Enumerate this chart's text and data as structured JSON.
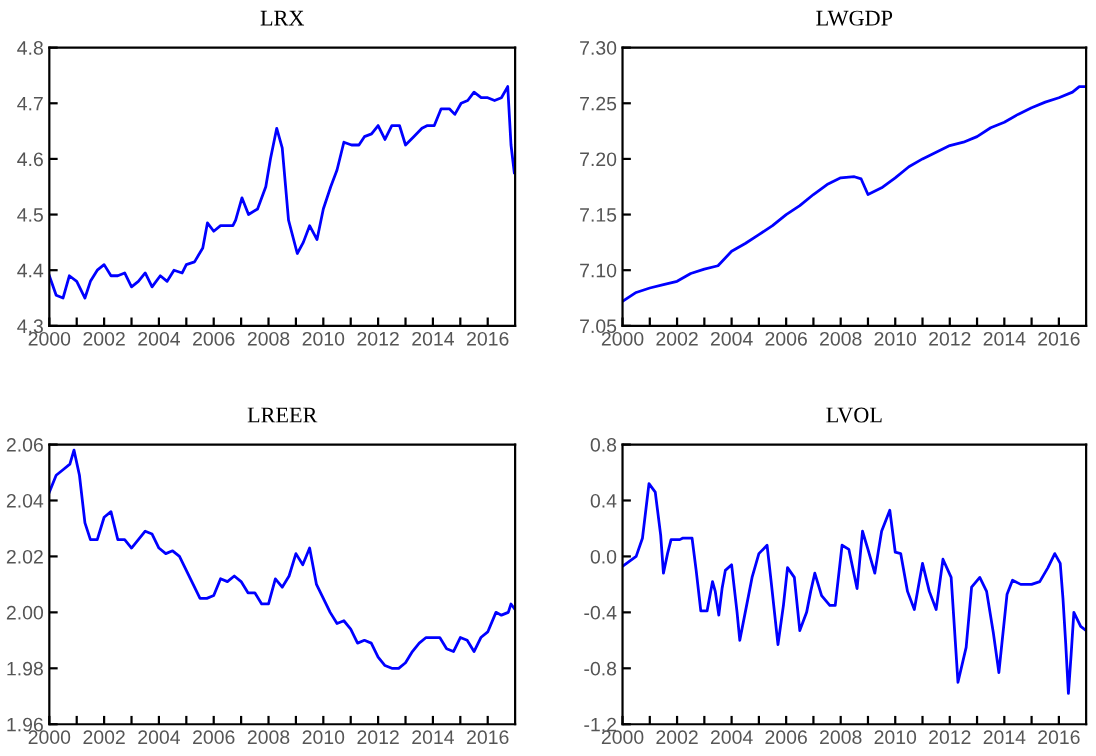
{
  "chart_data": [
    {
      "type": "line",
      "title": "LRX",
      "xlim": [
        2000,
        2017
      ],
      "ylim": [
        4.3,
        4.8
      ],
      "yticks": [
        4.3,
        4.4,
        4.5,
        4.6,
        4.7,
        4.8
      ],
      "grid": false,
      "legend": false,
      "xticks": [
        2000,
        {
          "value": 2001,
          "label": null
        },
        2002,
        {
          "value": 2003,
          "label": null
        },
        2004,
        {
          "value": 2005,
          "label": null
        },
        2006,
        {
          "value": 2007,
          "label": null
        },
        2008,
        {
          "value": 2009,
          "label": null
        },
        2010,
        {
          "value": 2011,
          "label": null
        },
        2012,
        {
          "value": 2013,
          "label": null
        },
        2014,
        {
          "value": 2015,
          "label": null
        },
        2016
      ],
      "series": [
        {
          "color": "#0000ff",
          "x": [
            2000.0,
            2000.25,
            2000.5,
            2000.73,
            2001.0,
            2001.3,
            2001.5,
            2001.75,
            2002.0,
            2002.25,
            2002.5,
            2002.75,
            2003.0,
            2003.25,
            2003.5,
            2003.75,
            2004.05,
            2004.3,
            2004.55,
            2004.85,
            2005.0,
            2005.3,
            2005.6,
            2005.77,
            2006.0,
            2006.25,
            2006.7,
            2006.8,
            2007.03,
            2007.27,
            2007.6,
            2007.9,
            2008.07,
            2008.3,
            2008.5,
            2008.73,
            2009.05,
            2009.27,
            2009.5,
            2009.77,
            2010.0,
            2010.27,
            2010.5,
            2010.75,
            2011.03,
            2011.3,
            2011.5,
            2011.76,
            2012.0,
            2012.25,
            2012.5,
            2012.78,
            2013.0,
            2013.3,
            2013.6,
            2013.8,
            2014.05,
            2014.3,
            2014.6,
            2014.8,
            2015.03,
            2015.27,
            2015.5,
            2015.76,
            2016.0,
            2016.25,
            2016.5,
            2016.73,
            2016.85,
            2016.97
          ],
          "values": [
            4.39,
            4.355,
            4.35,
            4.39,
            4.38,
            4.35,
            4.38,
            4.4,
            4.41,
            4.39,
            4.39,
            4.395,
            4.37,
            4.38,
            4.395,
            4.37,
            4.39,
            4.38,
            4.4,
            4.395,
            4.41,
            4.415,
            4.44,
            4.485,
            4.47,
            4.48,
            4.48,
            4.49,
            4.53,
            4.5,
            4.51,
            4.55,
            4.6,
            4.655,
            4.62,
            4.49,
            4.43,
            4.45,
            4.48,
            4.455,
            4.51,
            4.55,
            4.58,
            4.63,
            4.625,
            4.625,
            4.64,
            4.645,
            4.66,
            4.635,
            4.66,
            4.66,
            4.625,
            4.64,
            4.655,
            4.66,
            4.66,
            4.69,
            4.69,
            4.68,
            4.7,
            4.705,
            4.72,
            4.71,
            4.71,
            4.705,
            4.71,
            4.73,
            4.625,
            4.575
          ]
        }
      ]
    },
    {
      "type": "line",
      "title": "LWGDP",
      "xlim": [
        2000,
        2017
      ],
      "ylim": [
        7.05,
        7.3
      ],
      "yticks": [
        {
          "value": 7.05,
          "label": "7.05"
        },
        {
          "value": 7.1,
          "label": "7.10"
        },
        {
          "value": 7.15,
          "label": "7.15"
        },
        {
          "value": 7.2,
          "label": "7.20"
        },
        {
          "value": 7.25,
          "label": "7.25"
        },
        {
          "value": 7.3,
          "label": "7.30"
        }
      ],
      "grid": false,
      "legend": false,
      "xticks": [
        2000,
        {
          "value": 2001,
          "label": null
        },
        2002,
        {
          "value": 2003,
          "label": null
        },
        2004,
        {
          "value": 2005,
          "label": null
        },
        2006,
        {
          "value": 2007,
          "label": null
        },
        2008,
        {
          "value": 2009,
          "label": null
        },
        2010,
        {
          "value": 2011,
          "label": null
        },
        2012,
        {
          "value": 2013,
          "label": null
        },
        2014,
        {
          "value": 2015,
          "label": null
        },
        2016
      ],
      "series": [
        {
          "color": "#0000ff",
          "x": [
            2000.0,
            2000.5,
            2001.0,
            2001.5,
            2002.0,
            2002.5,
            2003.0,
            2003.5,
            2004.0,
            2004.5,
            2005.0,
            2005.5,
            2006.0,
            2006.5,
            2007.0,
            2007.5,
            2008.0,
            2008.5,
            2008.75,
            2009.0,
            2009.5,
            2010.0,
            2010.5,
            2011.0,
            2011.5,
            2012.0,
            2012.5,
            2013.0,
            2013.5,
            2014.0,
            2014.5,
            2015.0,
            2015.5,
            2016.0,
            2016.5,
            2016.75,
            2017.0
          ],
          "values": [
            7.072,
            7.08,
            7.084,
            7.087,
            7.09,
            7.097,
            7.101,
            7.104,
            7.117,
            7.124,
            7.132,
            7.14,
            7.15,
            7.158,
            7.168,
            7.177,
            7.183,
            7.184,
            7.182,
            7.168,
            7.174,
            7.183,
            7.193,
            7.2,
            7.206,
            7.212,
            7.215,
            7.22,
            7.228,
            7.233,
            7.24,
            7.246,
            7.251,
            7.255,
            7.26,
            7.265,
            7.265
          ]
        }
      ]
    },
    {
      "type": "line",
      "title": "LREER",
      "xlim": [
        2000,
        2017
      ],
      "ylim": [
        1.96,
        2.06
      ],
      "yticks": [
        1.96,
        1.98,
        {
          "value": 2.0,
          "label": "2.00"
        },
        2.02,
        2.04,
        2.06
      ],
      "grid": false,
      "legend": false,
      "xticks": [
        2000,
        {
          "value": 2001,
          "label": null
        },
        2002,
        {
          "value": 2003,
          "label": null
        },
        2004,
        {
          "value": 2005,
          "label": null
        },
        2006,
        {
          "value": 2007,
          "label": null
        },
        2008,
        {
          "value": 2009,
          "label": null
        },
        2010,
        {
          "value": 2011,
          "label": null
        },
        2012,
        {
          "value": 2013,
          "label": null
        },
        2014,
        {
          "value": 2015,
          "label": null
        },
        2016
      ],
      "series": [
        {
          "color": "#0000ff",
          "x": [
            2000.0,
            2000.25,
            2000.5,
            2000.75,
            2000.9,
            2001.1,
            2001.3,
            2001.5,
            2001.75,
            2002.0,
            2002.25,
            2002.5,
            2002.75,
            2003.0,
            2003.25,
            2003.5,
            2003.75,
            2004.0,
            2004.25,
            2004.5,
            2004.75,
            2005.0,
            2005.25,
            2005.5,
            2005.75,
            2006.0,
            2006.25,
            2006.5,
            2006.75,
            2007.0,
            2007.25,
            2007.5,
            2007.75,
            2008.0,
            2008.25,
            2008.5,
            2008.75,
            2009.0,
            2009.25,
            2009.5,
            2009.75,
            2010.0,
            2010.25,
            2010.5,
            2010.75,
            2011.0,
            2011.25,
            2011.5,
            2011.75,
            2012.0,
            2012.25,
            2012.5,
            2012.75,
            2013.0,
            2013.25,
            2013.5,
            2013.75,
            2014.0,
            2014.25,
            2014.5,
            2014.75,
            2015.0,
            2015.25,
            2015.5,
            2015.75,
            2016.0,
            2016.3,
            2016.5,
            2016.75,
            2016.85,
            2017.0
          ],
          "values": [
            2.043,
            2.049,
            2.051,
            2.053,
            2.058,
            2.049,
            2.032,
            2.026,
            2.026,
            2.034,
            2.036,
            2.026,
            2.026,
            2.023,
            2.026,
            2.029,
            2.028,
            2.023,
            2.021,
            2.022,
            2.02,
            2.015,
            2.01,
            2.005,
            2.005,
            2.006,
            2.012,
            2.011,
            2.013,
            2.011,
            2.007,
            2.007,
            2.003,
            2.003,
            2.012,
            2.009,
            2.013,
            2.021,
            2.017,
            2.023,
            2.01,
            2.005,
            2.0,
            1.996,
            1.997,
            1.994,
            1.989,
            1.99,
            1.989,
            1.984,
            1.981,
            1.98,
            1.98,
            1.982,
            1.986,
            1.989,
            1.991,
            1.991,
            1.991,
            1.987,
            1.986,
            1.991,
            1.99,
            1.986,
            1.991,
            1.993,
            2.0,
            1.999,
            2.0,
            2.003,
            2.001
          ]
        }
      ]
    },
    {
      "type": "line",
      "title": "LVOL",
      "xlim": [
        2000,
        2017
      ],
      "ylim": [
        -1.2,
        0.8
      ],
      "yticks": [
        {
          "value": -1.2,
          "label": "-1.2"
        },
        {
          "value": -0.8,
          "label": "-0.8"
        },
        {
          "value": -0.4,
          "label": "-0.4"
        },
        {
          "value": 0.0,
          "label": "0.0"
        },
        0.4,
        0.8
      ],
      "grid": false,
      "legend": false,
      "xticks": [
        2000,
        {
          "value": 2001,
          "label": null
        },
        2002,
        {
          "value": 2003,
          "label": null
        },
        2004,
        {
          "value": 2005,
          "label": null
        },
        2006,
        {
          "value": 2007,
          "label": null
        },
        2008,
        {
          "value": 2009,
          "label": null
        },
        2010,
        {
          "value": 2011,
          "label": null
        },
        2012,
        {
          "value": 2013,
          "label": null
        },
        2014,
        {
          "value": 2015,
          "label": null
        },
        2016
      ],
      "series": [
        {
          "color": "#0000ff",
          "x": [
            2000.0,
            2000.5,
            2000.73,
            2000.97,
            2001.2,
            2001.4,
            2001.5,
            2001.65,
            2001.78,
            2002.1,
            2002.2,
            2002.55,
            2002.7,
            2002.87,
            2003.1,
            2003.3,
            2003.4,
            2003.53,
            2003.65,
            2003.77,
            2004.0,
            2004.2,
            2004.3,
            2004.55,
            2004.75,
            2005.0,
            2005.3,
            2005.45,
            2005.7,
            2005.9,
            2006.05,
            2006.3,
            2006.5,
            2006.75,
            2006.9,
            2007.05,
            2007.3,
            2007.6,
            2007.8,
            2008.05,
            2008.3,
            2008.6,
            2008.8,
            2009.0,
            2009.25,
            2009.5,
            2009.8,
            2010.0,
            2010.2,
            2010.45,
            2010.7,
            2011.0,
            2011.25,
            2011.5,
            2011.75,
            2012.05,
            2012.3,
            2012.6,
            2012.8,
            2013.1,
            2013.35,
            2013.6,
            2013.8,
            2014.1,
            2014.3,
            2014.6,
            2015.0,
            2015.3,
            2015.6,
            2015.85,
            2016.05,
            2016.15,
            2016.25,
            2016.35,
            2016.45,
            2016.55,
            2016.8,
            2017.0
          ],
          "values": [
            -0.07,
            0.0,
            0.13,
            0.52,
            0.46,
            0.15,
            -0.12,
            0.02,
            0.12,
            0.12,
            0.13,
            0.13,
            -0.1,
            -0.39,
            -0.39,
            -0.18,
            -0.25,
            -0.42,
            -0.23,
            -0.1,
            -0.06,
            -0.4,
            -0.6,
            -0.35,
            -0.15,
            0.02,
            0.08,
            -0.18,
            -0.63,
            -0.35,
            -0.08,
            -0.15,
            -0.53,
            -0.4,
            -0.25,
            -0.12,
            -0.28,
            -0.35,
            -0.35,
            0.08,
            0.05,
            -0.23,
            0.18,
            0.05,
            -0.12,
            0.18,
            0.33,
            0.03,
            0.02,
            -0.25,
            -0.38,
            -0.05,
            -0.25,
            -0.38,
            -0.02,
            -0.15,
            -0.9,
            -0.65,
            -0.22,
            -0.15,
            -0.25,
            -0.55,
            -0.83,
            -0.27,
            -0.17,
            -0.2,
            -0.2,
            -0.18,
            -0.08,
            0.02,
            -0.05,
            -0.3,
            -0.62,
            -0.98,
            -0.7,
            -0.4,
            -0.5,
            -0.53
          ]
        }
      ]
    }
  ]
}
